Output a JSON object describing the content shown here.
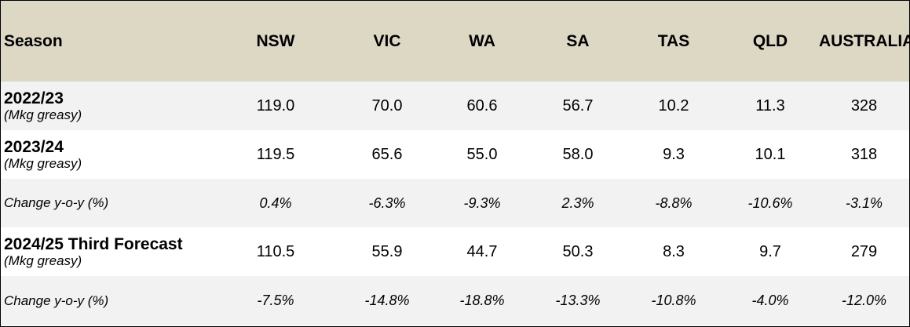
{
  "table": {
    "header": [
      "Season",
      "NSW",
      "VIC",
      "WA",
      "SA",
      "TAS",
      "QLD",
      "AUSTRALIA"
    ],
    "rows": [
      {
        "label": "2022/23",
        "sublabel": "(Mkg greasy)",
        "values": [
          "119.0",
          "70.0",
          "60.6",
          "56.7",
          "10.2",
          "11.3",
          "328"
        ]
      },
      {
        "label": "2023/24",
        "sublabel": "(Mkg greasy)",
        "values": [
          "119.5",
          "65.6",
          "55.0",
          "58.0",
          "9.3",
          "10.1",
          "318"
        ]
      },
      {
        "label": "Change y-o-y (%)",
        "values": [
          "0.4%",
          "-6.3%",
          "-9.3%",
          "2.3%",
          "-8.8%",
          "-10.6%",
          "-3.1%"
        ]
      },
      {
        "label": "2024/25 Third Forecast",
        "sublabel": "(Mkg greasy)",
        "values": [
          "110.5",
          "55.9",
          "44.7",
          "50.3",
          "8.3",
          "9.7",
          "279"
        ]
      },
      {
        "label": "Change y-o-y (%)",
        "values": [
          "-7.5%",
          "-14.8%",
          "-18.8%",
          "-13.3%",
          "-10.8%",
          "-4.0%",
          "-12.0%"
        ]
      }
    ]
  },
  "colors": {
    "header_bg": "#ddd8c4",
    "shade_bg": "#f2f2f2",
    "plain_bg": "#ffffff"
  }
}
